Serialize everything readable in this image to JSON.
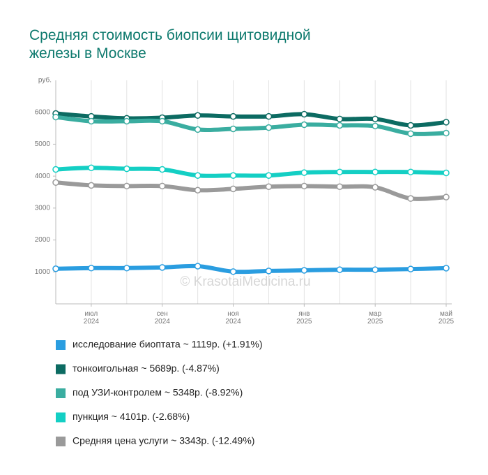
{
  "chart_data": {
    "type": "line",
    "title": "Средняя стоимость биопсии щитовидной железы в Москве",
    "y_unit": "руб.",
    "watermark": "© KrasotaiMedicina.ru",
    "categories": [
      null,
      [
        "июл",
        "2024"
      ],
      null,
      [
        "сен",
        "2024"
      ],
      null,
      [
        "ноя",
        "2024"
      ],
      null,
      [
        "янв",
        "2025"
      ],
      null,
      [
        "мар",
        "2025"
      ],
      null,
      [
        "май",
        "2025"
      ]
    ],
    "ylim": [
      0,
      7000
    ],
    "yticks": [
      1000,
      2000,
      3000,
      4000,
      5000,
      6000
    ],
    "series": [
      {
        "name": "исследование биоптата ~ 1119р. (+1.91%)",
        "color": "#2a9de0",
        "values": [
          1100,
          1120,
          1120,
          1140,
          1180,
          1010,
          1030,
          1050,
          1070,
          1070,
          1090,
          1119
        ]
      },
      {
        "name": "тонкоигольная ~ 5689р. (-4.87%)",
        "color": "#0c6b62",
        "values": [
          5960,
          5870,
          5810,
          5830,
          5900,
          5870,
          5870,
          5940,
          5790,
          5790,
          5590,
          5689
        ]
      },
      {
        "name": "под УЗИ-контролем ~ 5348р. (-8.92%)",
        "color": "#3aada0",
        "values": [
          5850,
          5720,
          5720,
          5720,
          5460,
          5480,
          5520,
          5610,
          5590,
          5570,
          5330,
          5348
        ]
      },
      {
        "name": "пункция ~ 4101р. (-2.68%)",
        "color": "#14cfc4",
        "values": [
          4210,
          4260,
          4230,
          4210,
          4020,
          4020,
          4020,
          4110,
          4130,
          4130,
          4130,
          4101
        ]
      },
      {
        "name": "Средняя цена услуги ~ 3343р. (-12.49%)",
        "color": "#9a9a9a",
        "values": [
          3800,
          3710,
          3690,
          3690,
          3560,
          3600,
          3670,
          3690,
          3670,
          3650,
          3300,
          3343
        ]
      }
    ]
  }
}
